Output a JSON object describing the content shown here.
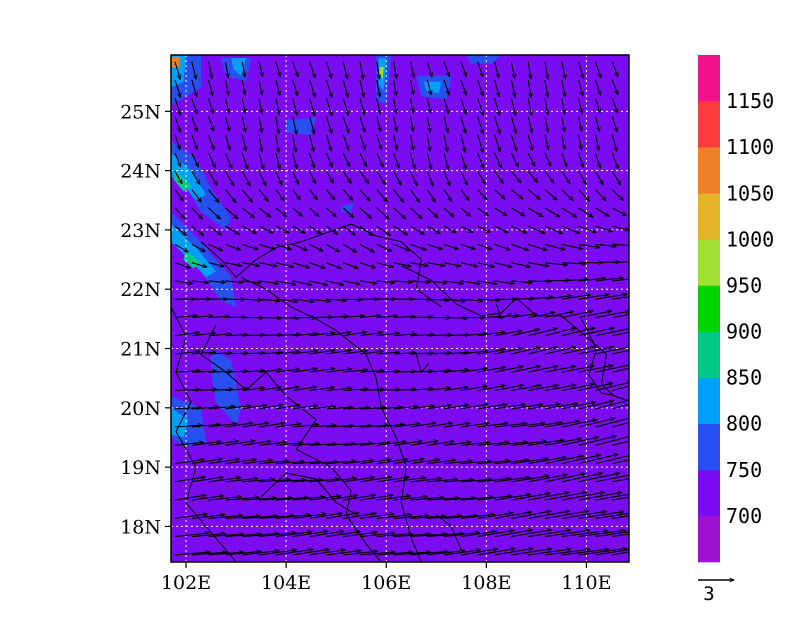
{
  "map": {
    "lon_range": [
      101.7,
      110.85
    ],
    "lat_range": [
      17.4,
      25.95
    ],
    "grid": true,
    "x_ticks": [
      {
        "value": 102,
        "label": "102E"
      },
      {
        "value": 104,
        "label": "104E"
      },
      {
        "value": 106,
        "label": "106E"
      },
      {
        "value": 108,
        "label": "108E"
      },
      {
        "value": 110,
        "label": "110E"
      }
    ],
    "y_ticks": [
      {
        "value": 18,
        "label": "18N"
      },
      {
        "value": 19,
        "label": "19N"
      },
      {
        "value": 20,
        "label": "20N"
      },
      {
        "value": 21,
        "label": "21N"
      },
      {
        "value": 22,
        "label": "22N"
      },
      {
        "value": 23,
        "label": "23N"
      },
      {
        "value": 24,
        "label": "24N"
      },
      {
        "value": 25,
        "label": "25N"
      }
    ],
    "background_color": "#7b0bf0",
    "contour_levels": [
      700,
      750,
      800,
      850,
      900,
      950,
      1000,
      1050,
      1100,
      1150
    ],
    "colorbar": {
      "colors": [
        "#a010d0",
        "#7b0bf0",
        "#2850f0",
        "#00a0f8",
        "#00c886",
        "#00d400",
        "#a0e030",
        "#e4b428",
        "#f08028",
        "#fa3c3c",
        "#f0148c"
      ],
      "labels": [
        "700",
        "750",
        "800",
        "850",
        "900",
        "950",
        "1000",
        "1050",
        "1100",
        "1150"
      ]
    },
    "patches": [
      {
        "color": "#2850f0",
        "pts": [
          [
            101.7,
            25.95
          ],
          [
            102.3,
            25.95
          ],
          [
            102.3,
            25.4
          ],
          [
            101.7,
            25.1
          ]
        ]
      },
      {
        "color": "#00a0f8",
        "pts": [
          [
            101.7,
            25.95
          ],
          [
            102.0,
            25.95
          ],
          [
            101.95,
            25.5
          ],
          [
            101.7,
            25.4
          ]
        ]
      },
      {
        "color": "#f08028",
        "pts": [
          [
            101.72,
            25.92
          ],
          [
            101.88,
            25.92
          ],
          [
            101.85,
            25.72
          ],
          [
            101.72,
            25.75
          ]
        ]
      },
      {
        "color": "#2850f0",
        "pts": [
          [
            102.7,
            25.9
          ],
          [
            103.3,
            25.9
          ],
          [
            103.2,
            25.5
          ],
          [
            102.8,
            25.6
          ]
        ]
      },
      {
        "color": "#00a0f8",
        "pts": [
          [
            102.9,
            25.9
          ],
          [
            103.2,
            25.9
          ],
          [
            103.1,
            25.6
          ],
          [
            102.95,
            25.7
          ]
        ]
      },
      {
        "color": "#2850f0",
        "pts": [
          [
            101.7,
            24.5
          ],
          [
            102.2,
            24.2
          ],
          [
            102.5,
            23.7
          ],
          [
            102.9,
            23.2
          ],
          [
            102.8,
            23.0
          ],
          [
            102.3,
            23.3
          ],
          [
            101.95,
            23.8
          ],
          [
            101.7,
            24.0
          ]
        ]
      },
      {
        "color": "#00a0f8",
        "pts": [
          [
            101.7,
            24.3
          ],
          [
            102.1,
            24.0
          ],
          [
            102.4,
            23.6
          ],
          [
            102.2,
            23.5
          ],
          [
            101.9,
            23.8
          ],
          [
            101.7,
            23.9
          ]
        ]
      },
      {
        "color": "#00c886",
        "pts": [
          [
            101.8,
            24.0
          ],
          [
            102.1,
            23.75
          ],
          [
            101.95,
            23.65
          ],
          [
            101.75,
            23.85
          ]
        ]
      },
      {
        "color": "#2850f0",
        "pts": [
          [
            101.7,
            23.3
          ],
          [
            102.3,
            22.8
          ],
          [
            102.9,
            22.2
          ],
          [
            103.0,
            21.7
          ],
          [
            102.7,
            21.8
          ],
          [
            102.3,
            22.3
          ],
          [
            101.7,
            22.8
          ]
        ]
      },
      {
        "color": "#00a0f8",
        "pts": [
          [
            101.7,
            23.1
          ],
          [
            102.2,
            22.7
          ],
          [
            102.6,
            22.3
          ],
          [
            102.4,
            22.2
          ],
          [
            101.95,
            22.6
          ],
          [
            101.7,
            22.8
          ]
        ]
      },
      {
        "color": "#00c886",
        "pts": [
          [
            102.0,
            22.65
          ],
          [
            102.3,
            22.45
          ],
          [
            102.15,
            22.35
          ],
          [
            101.95,
            22.5
          ]
        ]
      },
      {
        "color": "#2850f0",
        "pts": [
          [
            102.5,
            21.0
          ],
          [
            102.9,
            20.8
          ],
          [
            103.1,
            20.0
          ],
          [
            103.0,
            19.7
          ],
          [
            102.6,
            20.1
          ],
          [
            102.5,
            20.6
          ]
        ]
      },
      {
        "color": "#2850f0",
        "pts": [
          [
            101.7,
            20.2
          ],
          [
            102.3,
            20.0
          ],
          [
            102.4,
            19.4
          ],
          [
            101.95,
            19.35
          ],
          [
            101.7,
            19.5
          ]
        ]
      },
      {
        "color": "#00a0f8",
        "pts": [
          [
            101.7,
            20.0
          ],
          [
            102.05,
            19.8
          ],
          [
            101.95,
            19.5
          ],
          [
            101.7,
            19.55
          ]
        ]
      },
      {
        "color": "#2850f0",
        "pts": [
          [
            104.0,
            24.85
          ],
          [
            104.6,
            24.9
          ],
          [
            104.5,
            24.6
          ],
          [
            104.0,
            24.65
          ]
        ]
      },
      {
        "color": "#2850f0",
        "pts": [
          [
            105.8,
            25.95
          ],
          [
            106.1,
            25.95
          ],
          [
            106.0,
            25.1
          ],
          [
            105.8,
            25.2
          ]
        ]
      },
      {
        "color": "#00a0f8",
        "pts": [
          [
            105.85,
            25.9
          ],
          [
            106.0,
            25.9
          ],
          [
            105.95,
            25.35
          ],
          [
            105.85,
            25.45
          ]
        ]
      },
      {
        "color": "#a0e030",
        "pts": [
          [
            105.87,
            25.75
          ],
          [
            105.95,
            25.75
          ],
          [
            105.93,
            25.55
          ],
          [
            105.87,
            25.6
          ]
        ]
      },
      {
        "color": "#2850f0",
        "pts": [
          [
            106.6,
            25.6
          ],
          [
            107.3,
            25.6
          ],
          [
            107.2,
            25.2
          ],
          [
            106.7,
            25.25
          ]
        ]
      },
      {
        "color": "#00a0f8",
        "pts": [
          [
            106.75,
            25.5
          ],
          [
            107.1,
            25.5
          ],
          [
            107.05,
            25.3
          ],
          [
            106.8,
            25.35
          ]
        ]
      },
      {
        "color": "#2850f0",
        "pts": [
          [
            107.6,
            25.95
          ],
          [
            108.3,
            25.95
          ],
          [
            108.1,
            25.8
          ],
          [
            107.7,
            25.8
          ]
        ]
      },
      {
        "color": "#2850f0",
        "pts": [
          [
            105.1,
            23.4
          ],
          [
            105.35,
            23.45
          ],
          [
            105.3,
            23.3
          ],
          [
            105.1,
            23.3
          ]
        ]
      }
    ],
    "coasts": [
      [
        [
          106.3,
          22.4
        ],
        [
          106.9,
          22.15
        ],
        [
          107.4,
          21.75
        ],
        [
          107.9,
          21.55
        ],
        [
          108.3,
          21.6
        ],
        [
          108.6,
          21.85
        ],
        [
          109.0,
          21.55
        ],
        [
          109.5,
          21.55
        ],
        [
          110.0,
          21.2
        ],
        [
          110.4,
          20.9
        ],
        [
          110.3,
          20.4
        ],
        [
          110.55,
          20.2
        ],
        [
          110.9,
          20.1
        ]
      ],
      [
        [
          103.1,
          22.2
        ],
        [
          103.6,
          22.0
        ],
        [
          104.1,
          21.7
        ],
        [
          104.6,
          21.5
        ],
        [
          105.0,
          21.3
        ],
        [
          105.6,
          20.9
        ],
        [
          105.8,
          20.5
        ],
        [
          105.9,
          20.0
        ],
        [
          106.2,
          19.5
        ],
        [
          106.4,
          19.0
        ],
        [
          106.3,
          18.4
        ],
        [
          106.5,
          17.8
        ],
        [
          106.7,
          17.4
        ]
      ],
      [
        [
          102.3,
          22.8
        ],
        [
          102.7,
          22.5
        ],
        [
          103.0,
          22.2
        ],
        [
          103.4,
          22.5
        ],
        [
          103.8,
          22.7
        ],
        [
          104.3,
          22.8
        ],
        [
          104.8,
          22.95
        ],
        [
          105.3,
          23.1
        ],
        [
          105.8,
          22.9
        ],
        [
          106.3,
          22.8
        ],
        [
          106.7,
          22.5
        ],
        [
          106.6,
          22.0
        ],
        [
          107.1,
          21.7
        ]
      ],
      [
        [
          102.6,
          21.4
        ],
        [
          102.3,
          20.9
        ],
        [
          102.8,
          20.6
        ],
        [
          103.2,
          20.3
        ],
        [
          103.6,
          20.6
        ],
        [
          104.0,
          20.2
        ],
        [
          104.6,
          19.8
        ],
        [
          104.2,
          19.3
        ],
        [
          104.9,
          19.0
        ],
        [
          105.3,
          18.6
        ],
        [
          105.2,
          18.2
        ],
        [
          105.6,
          17.7
        ],
        [
          105.9,
          17.4
        ]
      ],
      [
        [
          103.5,
          18.5
        ],
        [
          104.0,
          18.9
        ],
        [
          104.6,
          18.8
        ],
        [
          105.0,
          18.4
        ],
        [
          105.4,
          18.2
        ]
      ],
      [
        [
          101.7,
          21.7
        ],
        [
          102.0,
          21.2
        ],
        [
          101.8,
          20.6
        ],
        [
          102.1,
          20.1
        ],
        [
          101.8,
          19.6
        ],
        [
          102.2,
          19.0
        ],
        [
          102.0,
          18.4
        ],
        [
          102.5,
          17.9
        ],
        [
          103.0,
          17.4
        ]
      ],
      [
        [
          107.0,
          18.2
        ],
        [
          107.3,
          18.0
        ],
        [
          107.5,
          17.6
        ]
      ],
      [
        [
          108.2,
          21.75
        ],
        [
          108.3,
          21.5
        ],
        [
          108.5,
          21.6
        ]
      ],
      [
        [
          109.9,
          21.5
        ],
        [
          110.2,
          21.0
        ],
        [
          110.05,
          20.55
        ],
        [
          110.3,
          20.25
        ],
        [
          110.6,
          20.2
        ]
      ],
      [
        [
          106.6,
          20.9
        ],
        [
          106.7,
          20.6
        ],
        [
          106.85,
          20.75
        ]
      ]
    ],
    "wind": {
      "lon_start": 101.78,
      "lon_step": 0.336,
      "lat_start": 17.52,
      "lat_step": 0.308,
      "cols": 27,
      "rows": 28,
      "pixels_per_unit": 12,
      "reference_vector_length": 3,
      "reference_label": "3"
    }
  }
}
